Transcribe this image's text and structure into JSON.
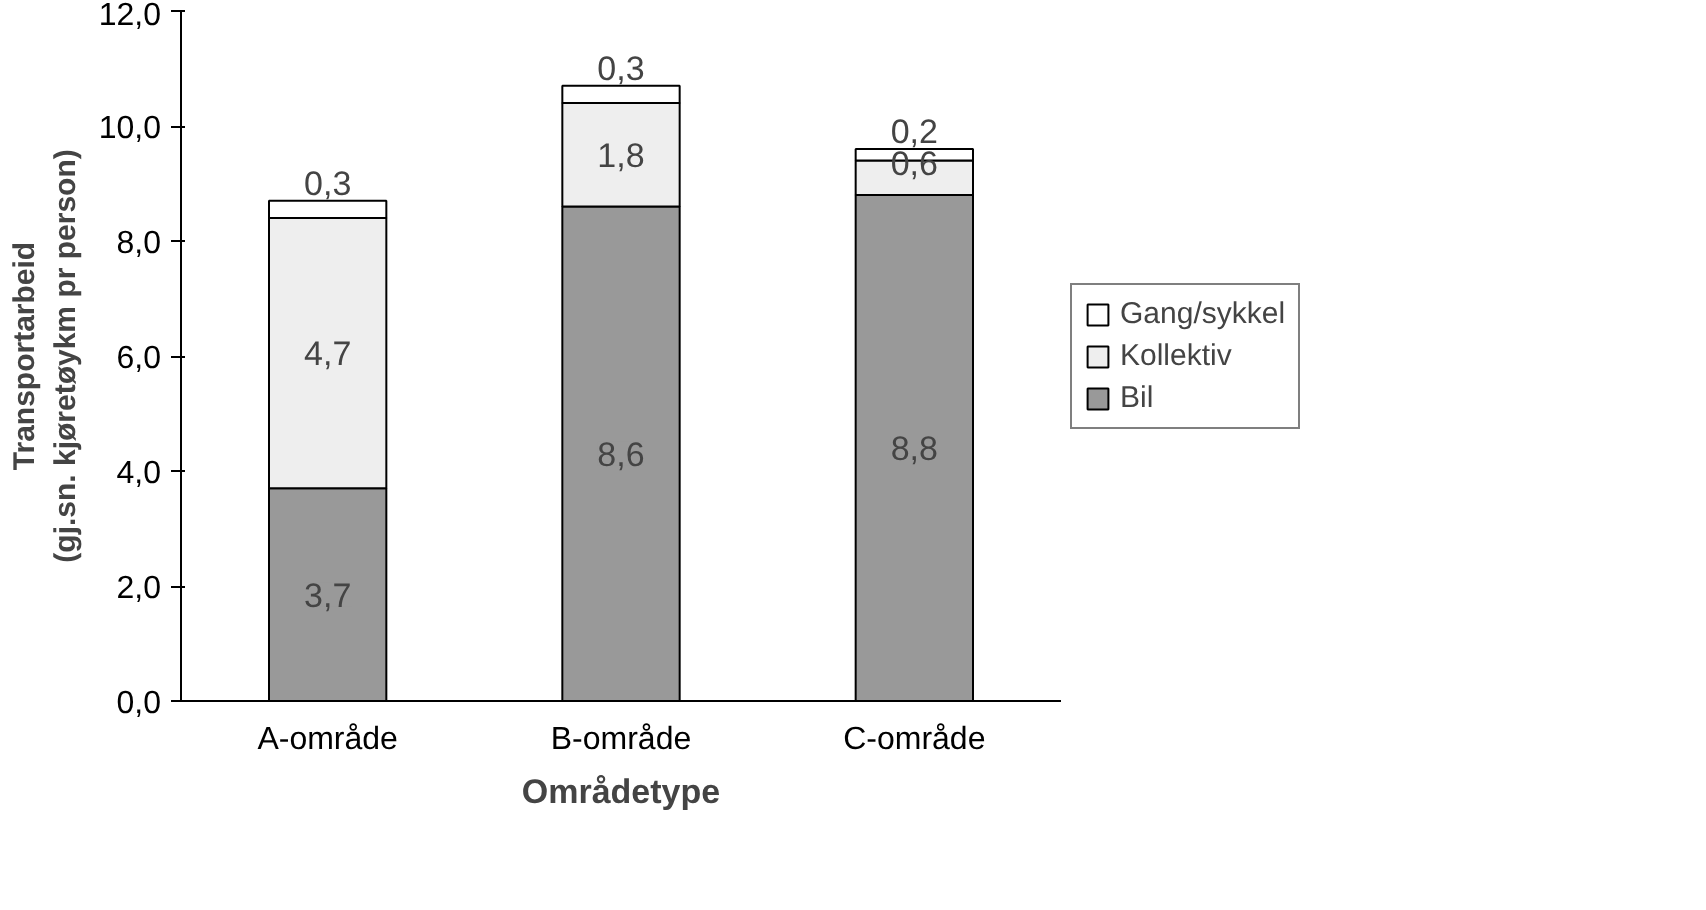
{
  "chart_data": {
    "type": "bar",
    "stacked": true,
    "xlabel": "Områdetype",
    "ylabel": "Transportarbeid\n(gj.sn. kjøretøykm pr person)",
    "categories": [
      "A-område",
      "B-område",
      "C-område"
    ],
    "series": [
      {
        "name": "Bil",
        "color": "#999999",
        "values": [
          3.7,
          8.6,
          8.8
        ],
        "value_labels": [
          "3,7",
          "8,6",
          "8,8"
        ]
      },
      {
        "name": "Kollektiv",
        "color": "#eeeeee",
        "values": [
          4.7,
          1.8,
          0.6
        ],
        "value_labels": [
          "4,7",
          "1,8",
          "0,6"
        ]
      },
      {
        "name": "Gang/sykkel",
        "color": "#ffffff",
        "values": [
          0.3,
          0.3,
          0.2
        ],
        "value_labels": [
          "0,3",
          "0,3",
          "0,2"
        ]
      }
    ],
    "ylim": [
      0,
      12
    ],
    "yticks": [
      {
        "value": 0,
        "label": "0,0"
      },
      {
        "value": 2,
        "label": "2,0"
      },
      {
        "value": 4,
        "label": "4,0"
      },
      {
        "value": 6,
        "label": "6,0"
      },
      {
        "value": 8,
        "label": "8,0"
      },
      {
        "value": 10,
        "label": "10,0"
      },
      {
        "value": 12,
        "label": "12,0"
      }
    ],
    "grid": false,
    "legend": "right"
  }
}
